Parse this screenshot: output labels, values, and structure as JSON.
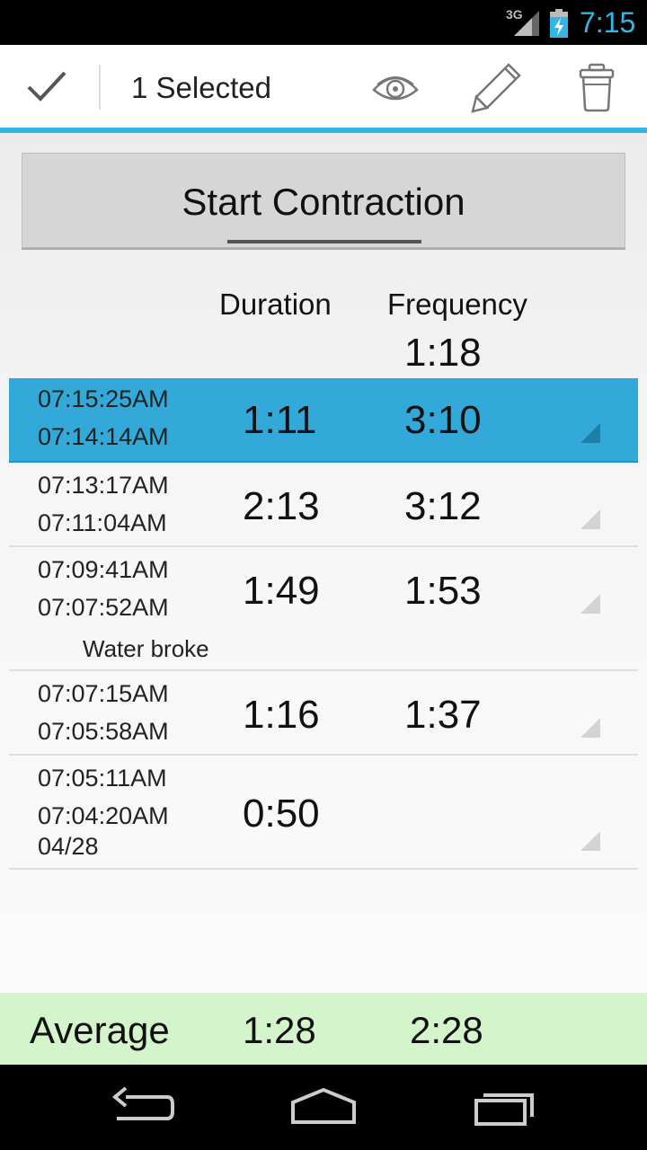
{
  "status_bar": {
    "network": "3G",
    "time": "7:15"
  },
  "action_bar": {
    "title": "1 Selected"
  },
  "start_button": {
    "label": "Start Contraction"
  },
  "headers": {
    "duration": "Duration",
    "frequency": "Frequency",
    "frequency_current": "1:18"
  },
  "rows": [
    {
      "end": "07:15:25AM",
      "start": "07:14:14AM",
      "duration": "1:11",
      "frequency": "3:10",
      "selected": true
    },
    {
      "end": "07:13:17AM",
      "start": "07:11:04AM",
      "duration": "2:13",
      "frequency": "3:12"
    },
    {
      "end": "07:09:41AM",
      "start": "07:07:52AM",
      "duration": "1:49",
      "frequency": "1:53",
      "note": "Water broke"
    },
    {
      "end": "07:07:15AM",
      "start": "07:05:58AM",
      "duration": "1:16",
      "frequency": "1:37"
    },
    {
      "end": "07:05:11AM",
      "start": "07:04:20AM",
      "date": "04/28",
      "duration": "0:50",
      "frequency": ""
    }
  ],
  "average": {
    "label": "Average",
    "duration": "1:28",
    "frequency": "2:28"
  },
  "colors": {
    "accent": "#33b5e5",
    "selected_row": "#33a9d9",
    "average_bg": "#d4f4cc"
  }
}
